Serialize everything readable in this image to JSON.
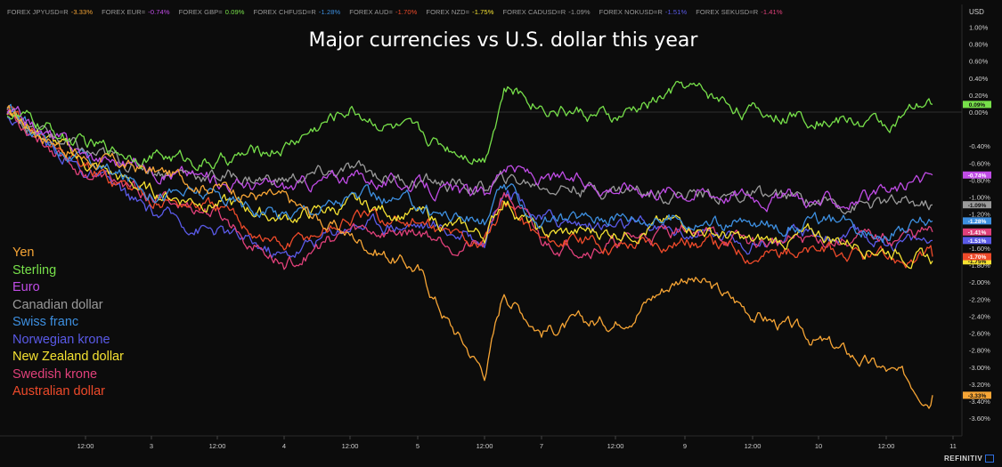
{
  "ticker": [
    {
      "label": "FOREX JPYUSD=R",
      "value": "-3.33%",
      "color": "#f7a535"
    },
    {
      "label": "FOREX EUR=",
      "value": "-0.74%",
      "color": "#c04ce6"
    },
    {
      "label": "FOREX GBP=",
      "value": "0.09%",
      "color": "#77e04a"
    },
    {
      "label": "FOREX CHFUSD=R",
      "value": "-1.28%",
      "color": "#3d8fe0"
    },
    {
      "label": "FOREX AUD=",
      "value": "-1.70%",
      "color": "#ee4a2a"
    },
    {
      "label": "FOREX NZD=",
      "value": "-1.75%",
      "color": "#f5e232"
    },
    {
      "label": "FOREX CADUSD=R",
      "value": "-1.09%",
      "color": "#9a9a9a"
    },
    {
      "label": "FOREX NOKUSD=R",
      "value": "-1.51%",
      "color": "#5a5ae8"
    },
    {
      "label": "FOREX SEKUSD=R",
      "value": "-1.41%",
      "color": "#e0407a"
    }
  ],
  "brand": "REFINITIV",
  "chart_data": {
    "type": "line",
    "title": "Major currencies vs U.S. dollar this year",
    "y_unit": "USD",
    "ylim": [
      -3.7,
      1.2
    ],
    "y_ticks": [
      "1.00%",
      "0.80%",
      "0.60%",
      "0.40%",
      "0.20%",
      "0.00%",
      "-0.40%",
      "-0.60%",
      "-0.80%",
      "-1.00%",
      "-1.20%",
      "-1.40%",
      "-1.60%",
      "-1.80%",
      "-2.00%",
      "-2.20%",
      "-2.40%",
      "-2.60%",
      "-2.80%",
      "-3.00%",
      "-3.20%",
      "-3.40%",
      "-3.60%"
    ],
    "x_ticks": [
      "12:00",
      "3",
      "12:00",
      "4",
      "12:00",
      "5",
      "12:00",
      "7",
      "12:00",
      "9",
      "12:00",
      "10",
      "12:00",
      "11"
    ],
    "x": [
      "2 00:00",
      "2 12:00",
      "3 00:00",
      "3 12:00",
      "4 00:00",
      "4 12:00",
      "5 00:00",
      "5 06:00",
      "5 12:00",
      "5 18:00",
      "7 00:00",
      "7 12:00",
      "9 00:00",
      "9 12:00",
      "10 00:00",
      "10 12:00",
      "10 20:00"
    ],
    "legend_position": "bottom-left",
    "series": [
      {
        "name": "Yen",
        "color": "#f7a535",
        "last_label": "-3.33%",
        "values": [
          0.0,
          -0.55,
          -0.7,
          -0.85,
          -1.05,
          -1.45,
          -1.85,
          -2.5,
          -3.05,
          -2.1,
          -2.55,
          -2.45,
          -1.9,
          -2.35,
          -2.7,
          -3.05,
          -3.33
        ]
      },
      {
        "name": "Sterling",
        "color": "#77e04a",
        "last_label": "0.09%",
        "values": [
          0.0,
          -0.4,
          -0.5,
          -0.6,
          -0.4,
          0.05,
          -0.3,
          -0.4,
          -0.5,
          0.3,
          0.1,
          -0.1,
          0.3,
          0.0,
          -0.05,
          -0.15,
          0.09
        ]
      },
      {
        "name": "Euro",
        "color": "#c04ce6",
        "last_label": "-0.74%",
        "values": [
          0.0,
          -0.5,
          -0.65,
          -0.8,
          -0.9,
          -0.75,
          -0.85,
          -0.95,
          -1.0,
          -0.6,
          -0.8,
          -0.85,
          -0.9,
          -0.95,
          -1.05,
          -1.0,
          -0.74
        ]
      },
      {
        "name": "Canadian dollar",
        "color": "#9a9a9a",
        "last_label": "-1.09%",
        "values": [
          0.0,
          -0.5,
          -0.65,
          -0.75,
          -0.8,
          -0.7,
          -0.8,
          -0.85,
          -0.9,
          -0.8,
          -0.85,
          -0.9,
          -0.95,
          -1.0,
          -1.05,
          -1.1,
          -1.09
        ]
      },
      {
        "name": "Swiss franc",
        "color": "#3d8fe0",
        "last_label": "-1.28%",
        "values": [
          0.0,
          -0.6,
          -0.9,
          -1.0,
          -1.2,
          -1.0,
          -1.1,
          -1.2,
          -1.3,
          -0.9,
          -1.3,
          -1.2,
          -1.25,
          -1.35,
          -1.3,
          -1.4,
          -1.28
        ]
      },
      {
        "name": "Norwegian krone",
        "color": "#5a5ae8",
        "last_label": "-1.51%",
        "values": [
          0.0,
          -0.7,
          -1.2,
          -1.4,
          -1.7,
          -1.3,
          -1.3,
          -1.4,
          -1.5,
          -0.8,
          -1.25,
          -1.35,
          -1.4,
          -1.5,
          -1.45,
          -1.5,
          -1.51
        ]
      },
      {
        "name": "New Zealand dollar",
        "color": "#f5e232",
        "last_label": "-1.75%",
        "values": [
          0.0,
          -0.6,
          -0.95,
          -1.05,
          -1.25,
          -1.1,
          -1.2,
          -1.35,
          -1.45,
          -1.0,
          -1.45,
          -1.4,
          -1.3,
          -1.55,
          -1.45,
          -1.6,
          -1.75
        ]
      },
      {
        "name": "Swedish krone",
        "color": "#e0407a",
        "last_label": "-1.41%",
        "values": [
          0.0,
          -0.7,
          -1.0,
          -1.2,
          -1.8,
          -1.4,
          -1.4,
          -1.5,
          -1.6,
          -0.9,
          -1.55,
          -1.55,
          -1.35,
          -1.55,
          -1.5,
          -1.5,
          -1.41
        ]
      },
      {
        "name": "Australian dollar",
        "color": "#ee4a2a",
        "last_label": "-1.70%",
        "values": [
          0.0,
          -0.65,
          -1.0,
          -1.15,
          -1.6,
          -1.25,
          -1.3,
          -1.45,
          -1.55,
          -1.05,
          -1.5,
          -1.55,
          -1.5,
          -1.65,
          -1.65,
          -1.75,
          -1.7
        ]
      }
    ]
  }
}
